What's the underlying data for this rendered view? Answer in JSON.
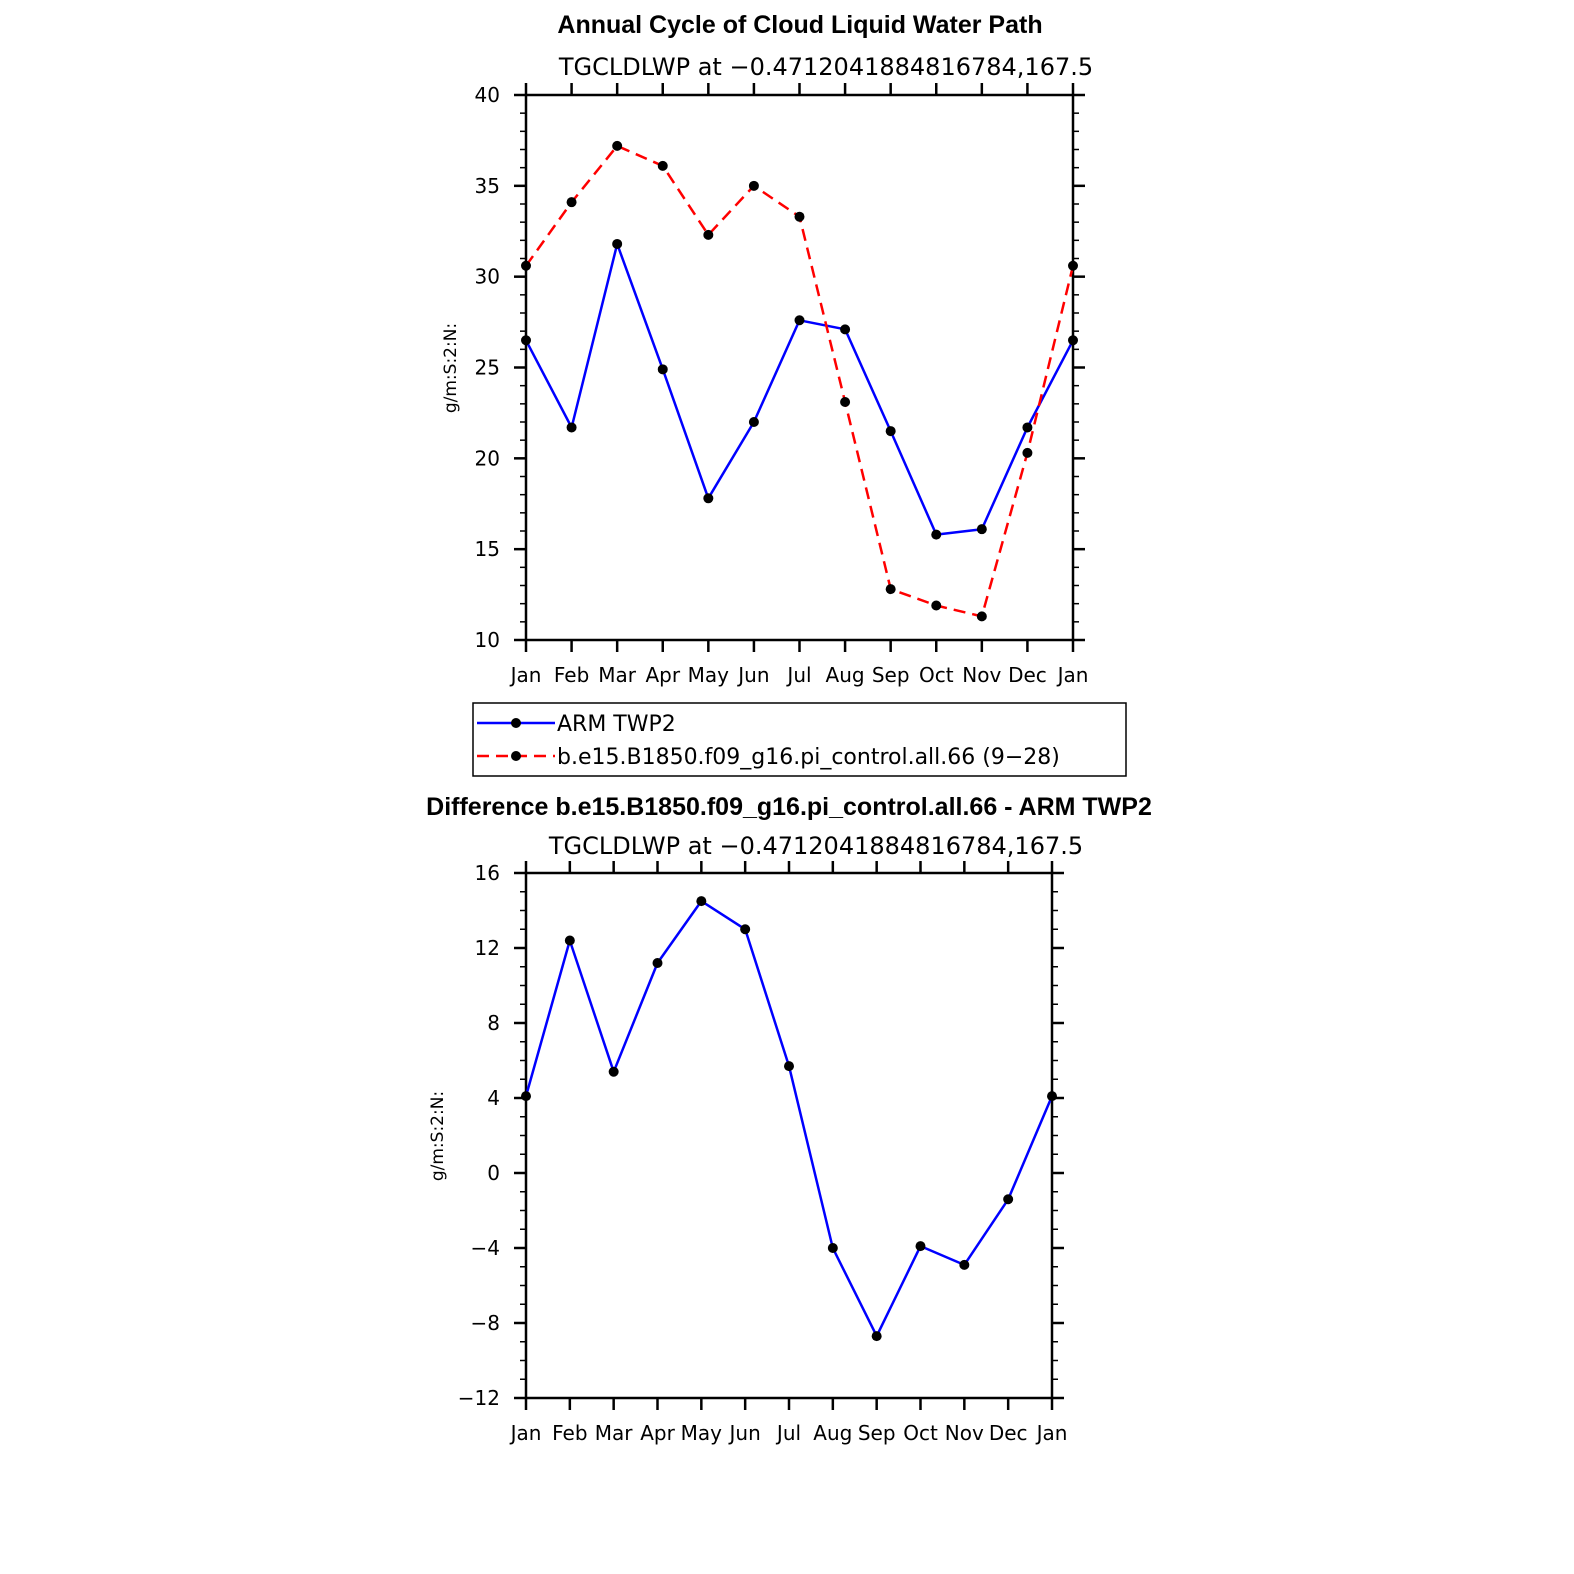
{
  "chart_data": [
    {
      "type": "line",
      "title": "Annual Cycle of Cloud Liquid Water Path",
      "subtitle": "TGCLDLWP at −0.4712041884816784,167.5",
      "ylabel": "g/m:S:2:N:",
      "categories": [
        "Jan",
        "Feb",
        "Mar",
        "Apr",
        "May",
        "Jun",
        "Jul",
        "Aug",
        "Sep",
        "Oct",
        "Nov",
        "Dec",
        "Jan"
      ],
      "ylim": [
        10,
        40
      ],
      "yticks": [
        10,
        15,
        20,
        25,
        30,
        35,
        40
      ],
      "ytick_labels": [
        "10",
        "15",
        "20",
        "25",
        "30",
        "35",
        "40"
      ],
      "series": [
        {
          "name": "ARM TWP2",
          "color": "#0000ff",
          "dash": "solid",
          "values": [
            26.5,
            21.7,
            31.8,
            24.9,
            17.8,
            22.0,
            27.6,
            27.1,
            21.5,
            15.8,
            16.1,
            21.7,
            26.5
          ]
        },
        {
          "name": "b.e15.B1850.f09_g16.pi_control.all.66 (9−28)",
          "color": "#ff0000",
          "dash": "dashed",
          "values": [
            30.6,
            34.1,
            37.2,
            36.1,
            32.3,
            35.0,
            33.3,
            23.1,
            12.8,
            11.9,
            11.3,
            20.3,
            30.6
          ]
        }
      ],
      "legend": "below"
    },
    {
      "type": "line",
      "title": "Difference b.e15.B1850.f09_g16.pi_control.all.66 - ARM TWP2",
      "subtitle": "TGCLDLWP at −0.4712041884816784,167.5",
      "ylabel": "g/m:S:2:N:",
      "categories": [
        "Jan",
        "Feb",
        "Mar",
        "Apr",
        "May",
        "Jun",
        "Jul",
        "Aug",
        "Sep",
        "Oct",
        "Nov",
        "Dec",
        "Jan"
      ],
      "ylim": [
        -12,
        16
      ],
      "yticks": [
        -12,
        -8,
        -4,
        0,
        4,
        8,
        12,
        16
      ],
      "ytick_labels": [
        "−12",
        "−8",
        "−4",
        "0",
        "4",
        "8",
        "12",
        "16"
      ],
      "series": [
        {
          "color": "#0000ff",
          "dash": "solid",
          "values": [
            4.1,
            12.4,
            5.4,
            11.2,
            14.5,
            13.0,
            5.7,
            -4.0,
            -8.7,
            -3.9,
            -4.9,
            -1.4,
            4.1
          ]
        }
      ]
    }
  ]
}
